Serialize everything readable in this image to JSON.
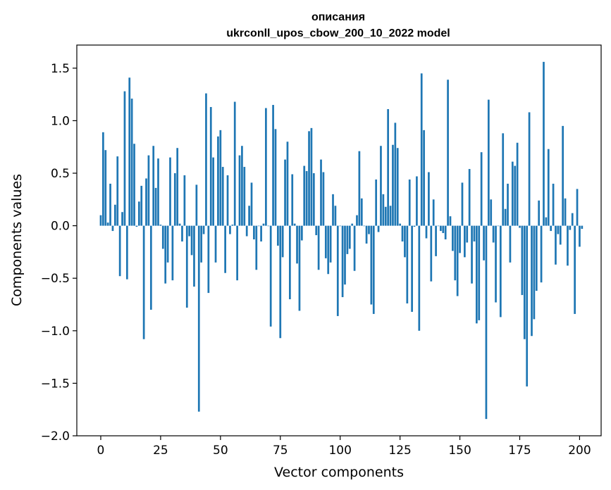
{
  "chart_data": {
    "type": "bar",
    "title_line1": "описания",
    "title_line2": "ukrconll_upos_cbow_200_10_2022 model",
    "xlabel": "Vector components",
    "ylabel": "Components values",
    "xlim": [
      -10,
      209
    ],
    "ylim": [
      -2.0,
      1.72
    ],
    "xticks": [
      0,
      25,
      50,
      75,
      100,
      125,
      150,
      175,
      200
    ],
    "yticks": [
      1.5,
      1.0,
      0.5,
      0.0,
      -0.5,
      -1.0,
      -1.5,
      -2.0
    ],
    "ytick_labels": [
      "1.5",
      "1.0",
      "0.5",
      "0.0",
      "−0.5",
      "−1.0",
      "−1.5",
      "−2.0"
    ],
    "bar_color": "#1f77b4",
    "values": [
      0.1,
      0.89,
      0.72,
      0.03,
      0.4,
      -0.05,
      0.2,
      0.66,
      -0.48,
      0.13,
      1.28,
      -0.51,
      1.41,
      1.21,
      0.78,
      -0.01,
      0.23,
      0.38,
      -1.08,
      0.45,
      0.67,
      -0.8,
      0.76,
      0.36,
      0.64,
      0.01,
      -0.22,
      -0.55,
      -0.35,
      0.65,
      -0.52,
      0.5,
      0.74,
      0.02,
      -0.15,
      0.48,
      -0.78,
      -0.1,
      -0.28,
      -0.58,
      0.39,
      -1.77,
      -0.35,
      -0.08,
      1.26,
      -0.64,
      1.13,
      0.65,
      -0.35,
      0.85,
      0.91,
      0.56,
      -0.45,
      0.48,
      -0.08,
      0.01,
      1.18,
      -0.52,
      0.67,
      0.76,
      0.56,
      -0.1,
      0.19,
      0.41,
      -0.13,
      -0.42,
      0.0,
      -0.15,
      0.02,
      1.12,
      0.0,
      -0.96,
      1.15,
      0.92,
      -0.19,
      -1.07,
      -0.3,
      0.63,
      0.8,
      -0.7,
      0.49,
      0.02,
      -0.36,
      -0.81,
      -0.14,
      0.57,
      0.52,
      0.9,
      0.93,
      0.5,
      -0.09,
      -0.42,
      0.63,
      0.51,
      -0.31,
      -0.46,
      -0.35,
      0.3,
      0.19,
      -0.86,
      0.0,
      -0.68,
      -0.56,
      -0.27,
      -0.22,
      0.02,
      -0.43,
      0.1,
      0.71,
      0.26,
      0.0,
      -0.17,
      -0.08,
      -0.75,
      -0.84,
      0.44,
      -0.06,
      0.76,
      0.3,
      0.18,
      1.11,
      0.19,
      0.77,
      0.98,
      0.74,
      0.02,
      -0.15,
      -0.3,
      -0.74,
      0.44,
      -0.82,
      -0.01,
      0.47,
      -1.0,
      1.45,
      0.91,
      -0.12,
      0.51,
      -0.53,
      0.25,
      -0.29,
      0.0,
      -0.05,
      -0.07,
      -0.13,
      1.39,
      0.09,
      -0.24,
      -0.52,
      -0.67,
      -0.26,
      0.41,
      -0.3,
      -0.16,
      0.54,
      -0.55,
      -0.15,
      -0.93,
      -0.9,
      0.7,
      -0.33,
      -1.84,
      1.2,
      0.25,
      -0.16,
      -0.73,
      0.0,
      -0.87,
      0.88,
      0.16,
      0.4,
      -0.35,
      0.61,
      0.57,
      0.79,
      -0.02,
      -0.66,
      -1.08,
      -1.53,
      1.08,
      -1.05,
      -0.89,
      -0.62,
      0.24,
      -0.54,
      1.56,
      0.08,
      0.73,
      -0.05,
      0.4,
      -0.37,
      -0.08,
      -0.18,
      0.95,
      0.26,
      -0.38,
      -0.04,
      0.12,
      -0.84,
      0.35,
      -0.2,
      -0.03
    ]
  }
}
